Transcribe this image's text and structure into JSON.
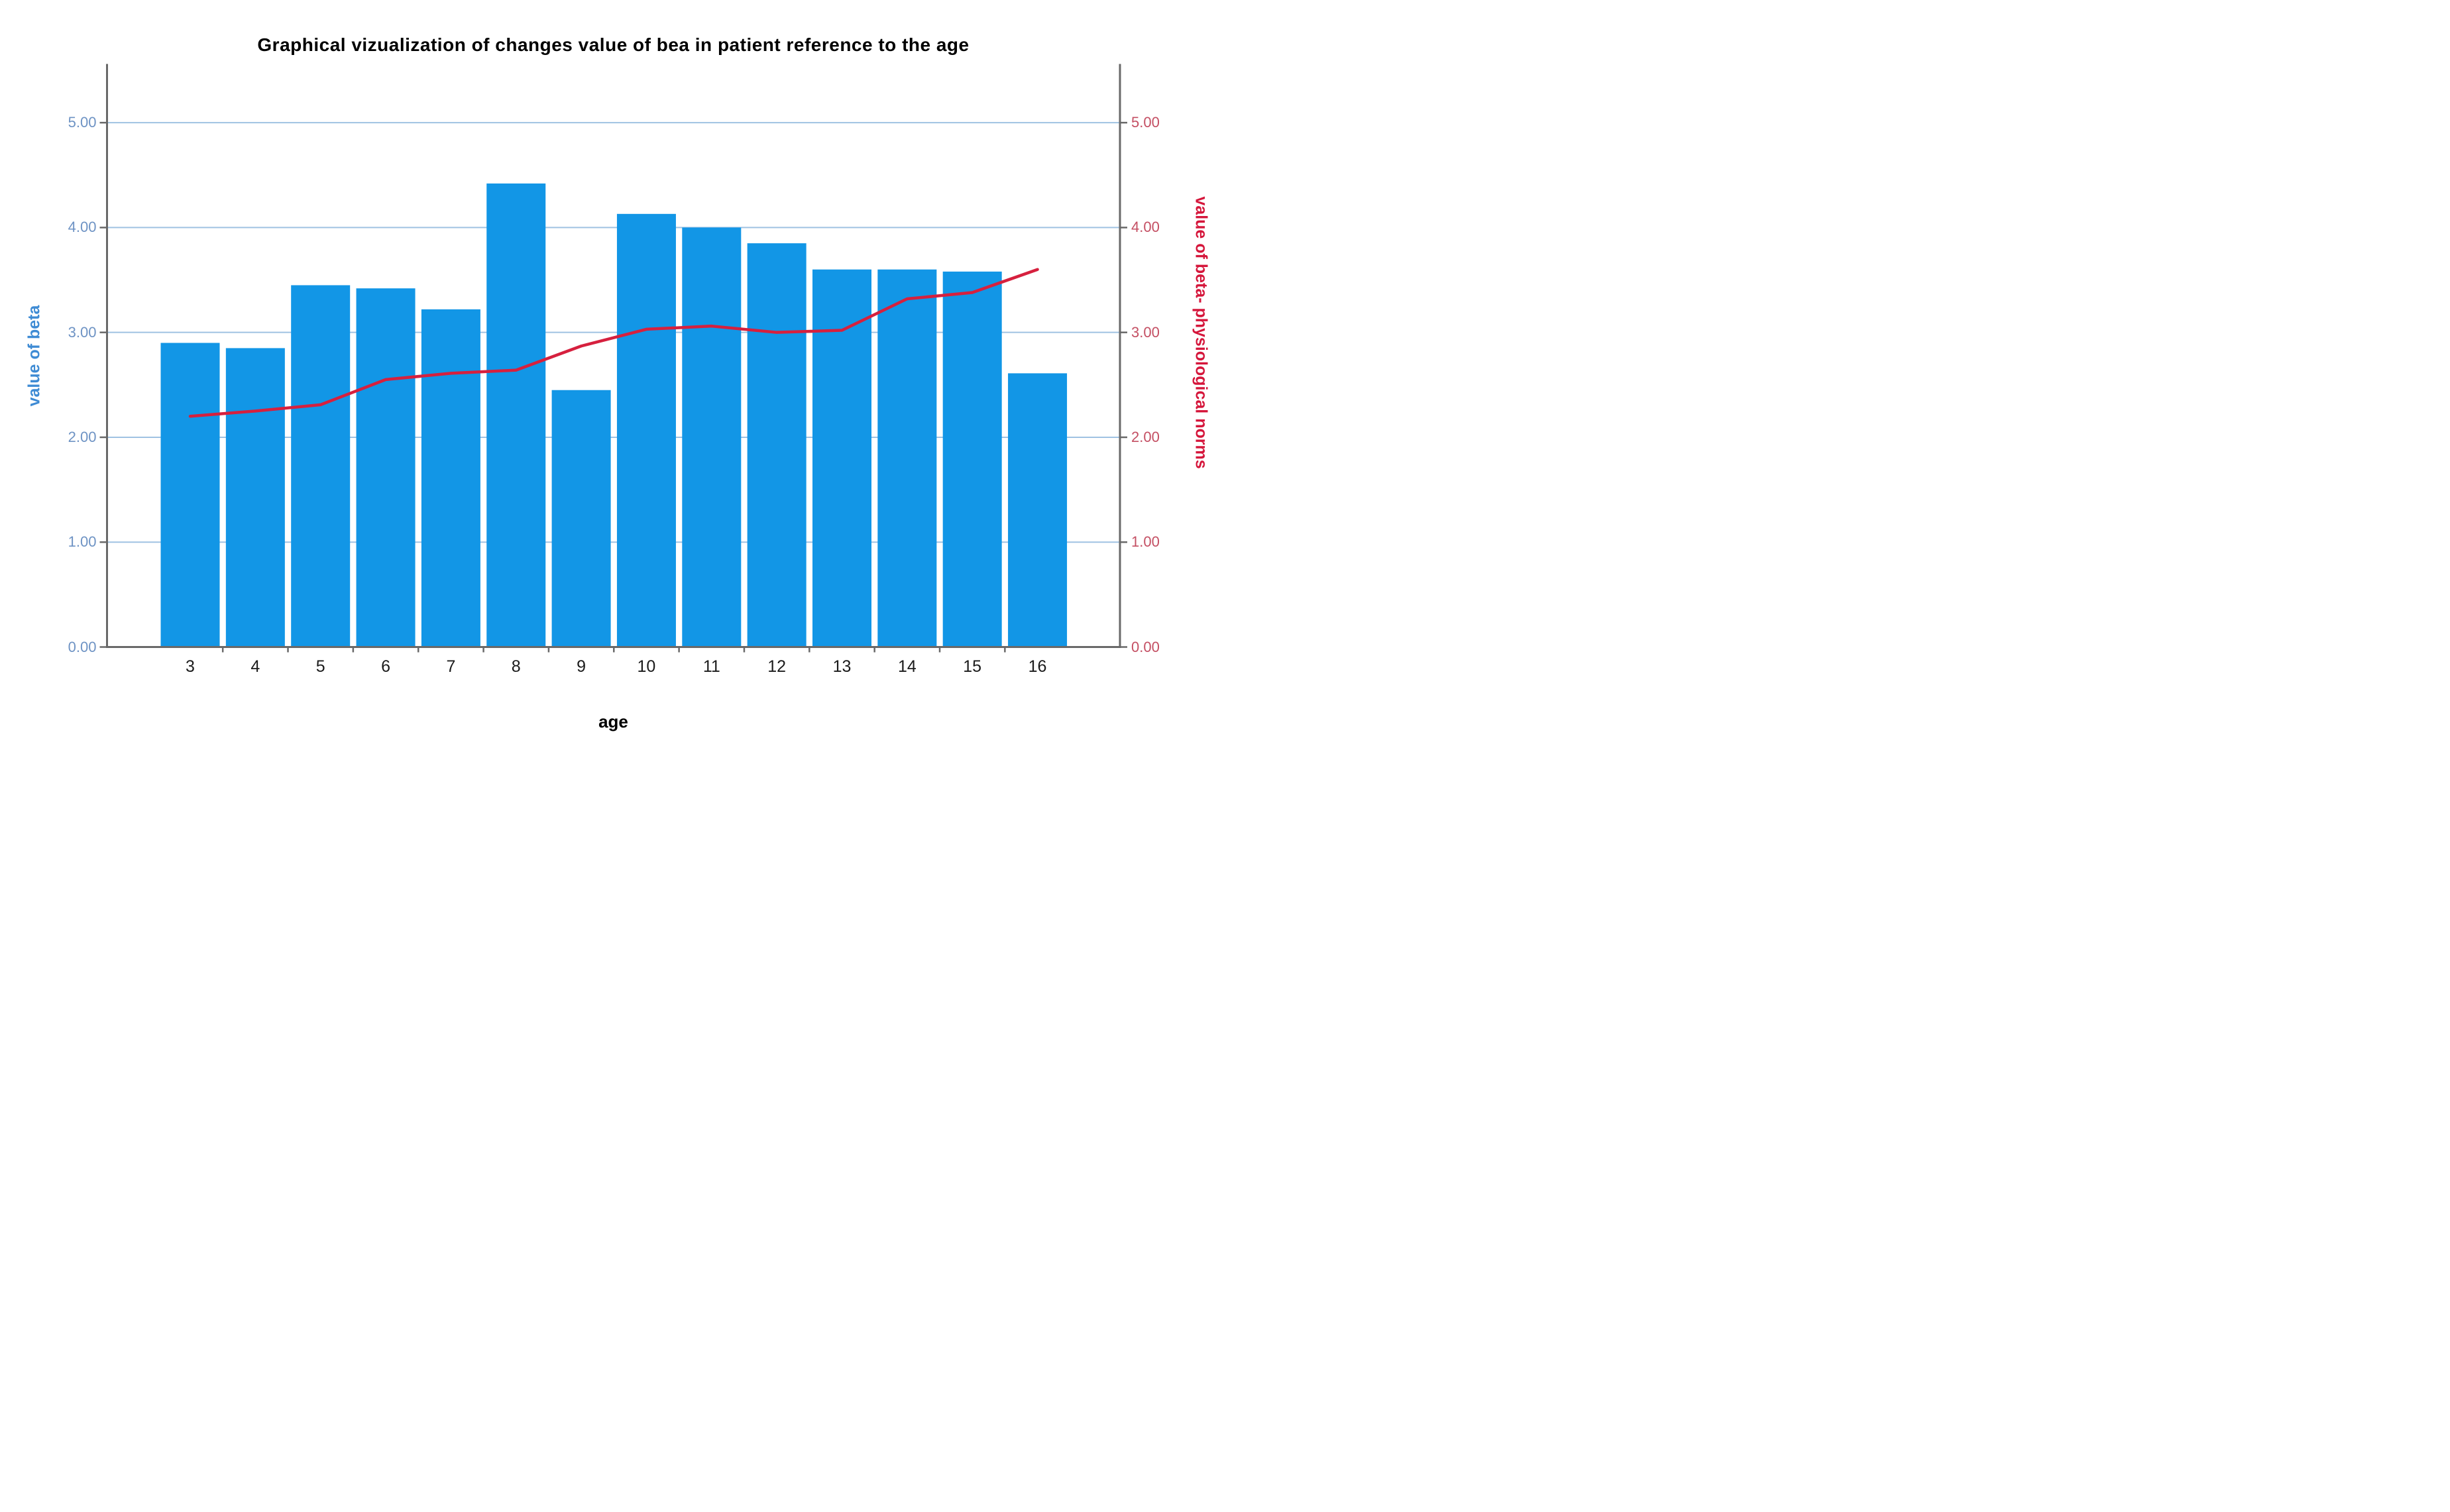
{
  "title": "Graphical vizualization of changes value of bea in patient reference to the age",
  "chart_data": {
    "type": "bar",
    "subtype": "bar-with-line-overlay",
    "title": "Graphical vizualization of changes value of bea in patient reference to the age",
    "xlabel": "age",
    "ylabel_left": "value of beta",
    "ylabel_right": "value of beta- physiological norms",
    "categories": [
      "3",
      "4",
      "5",
      "6",
      "7",
      "8",
      "9",
      "10",
      "11",
      "12",
      "13",
      "14",
      "15",
      "16"
    ],
    "series": [
      {
        "name": "value of beta",
        "type": "bar",
        "axis": "left",
        "color": "#1296e6",
        "values": [
          2.9,
          2.85,
          3.45,
          3.42,
          3.22,
          4.42,
          2.45,
          4.13,
          4.0,
          3.85,
          3.6,
          3.6,
          3.58,
          2.61
        ]
      },
      {
        "name": "value of beta- physiological norms",
        "type": "line",
        "axis": "right",
        "color": "#d6203e",
        "values": [
          2.2,
          2.25,
          2.31,
          2.55,
          2.61,
          2.64,
          2.87,
          3.03,
          3.06,
          3.0,
          3.02,
          3.32,
          3.38,
          3.6
        ]
      }
    ],
    "yticks_left": [
      "0.00",
      "1.00",
      "2.00",
      "3.00",
      "4.00",
      "5.00"
    ],
    "yticks_right": [
      "0.00",
      "1.00",
      "2.00",
      "3.00",
      "4.00",
      "5.00"
    ],
    "ytick_values": [
      0,
      1,
      2,
      3,
      4,
      5
    ],
    "ylim": [
      0,
      5.56
    ],
    "grid": "horizontal",
    "legend_position": "none",
    "colors": {
      "bar": "#1296e6",
      "line": "#d6203e",
      "gridline": "#9fc2e2",
      "axis_frame": "#696969",
      "left_tick_text": "#6e93c4",
      "right_tick_text": "#c44f63",
      "left_axis_title": "#3e8bd4",
      "right_axis_title": "#d5163b",
      "x_tick_text": "#1a1a1a",
      "title_text": "#000000"
    }
  }
}
